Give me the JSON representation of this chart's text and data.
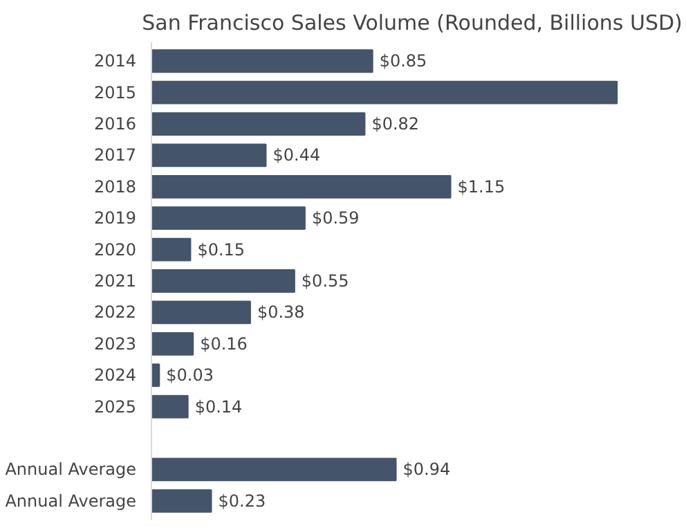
{
  "chart_data": {
    "type": "bar",
    "orientation": "horizontal",
    "title": "San Francisco Sales Volume (Rounded, Billions USD)",
    "categories": [
      "2014",
      "2015",
      "2016",
      "2017",
      "2018",
      "2019",
      "2020",
      "2021",
      "2022",
      "2023",
      "2024",
      "2025",
      null,
      "Annual Average",
      "Annual Average"
    ],
    "values": [
      0.85,
      1.79,
      0.82,
      0.44,
      1.15,
      0.59,
      0.15,
      0.55,
      0.38,
      0.16,
      0.03,
      0.14,
      null,
      0.94,
      0.23
    ],
    "value_labels": [
      "$0.85",
      null,
      "$0.82",
      "$0.44",
      "$1.15",
      "$0.59",
      "$0.15",
      "$0.55",
      "$0.38",
      "$0.16",
      "$0.03",
      "$0.14",
      null,
      "$0.94",
      "$0.23"
    ],
    "color": "#44546a"
  }
}
